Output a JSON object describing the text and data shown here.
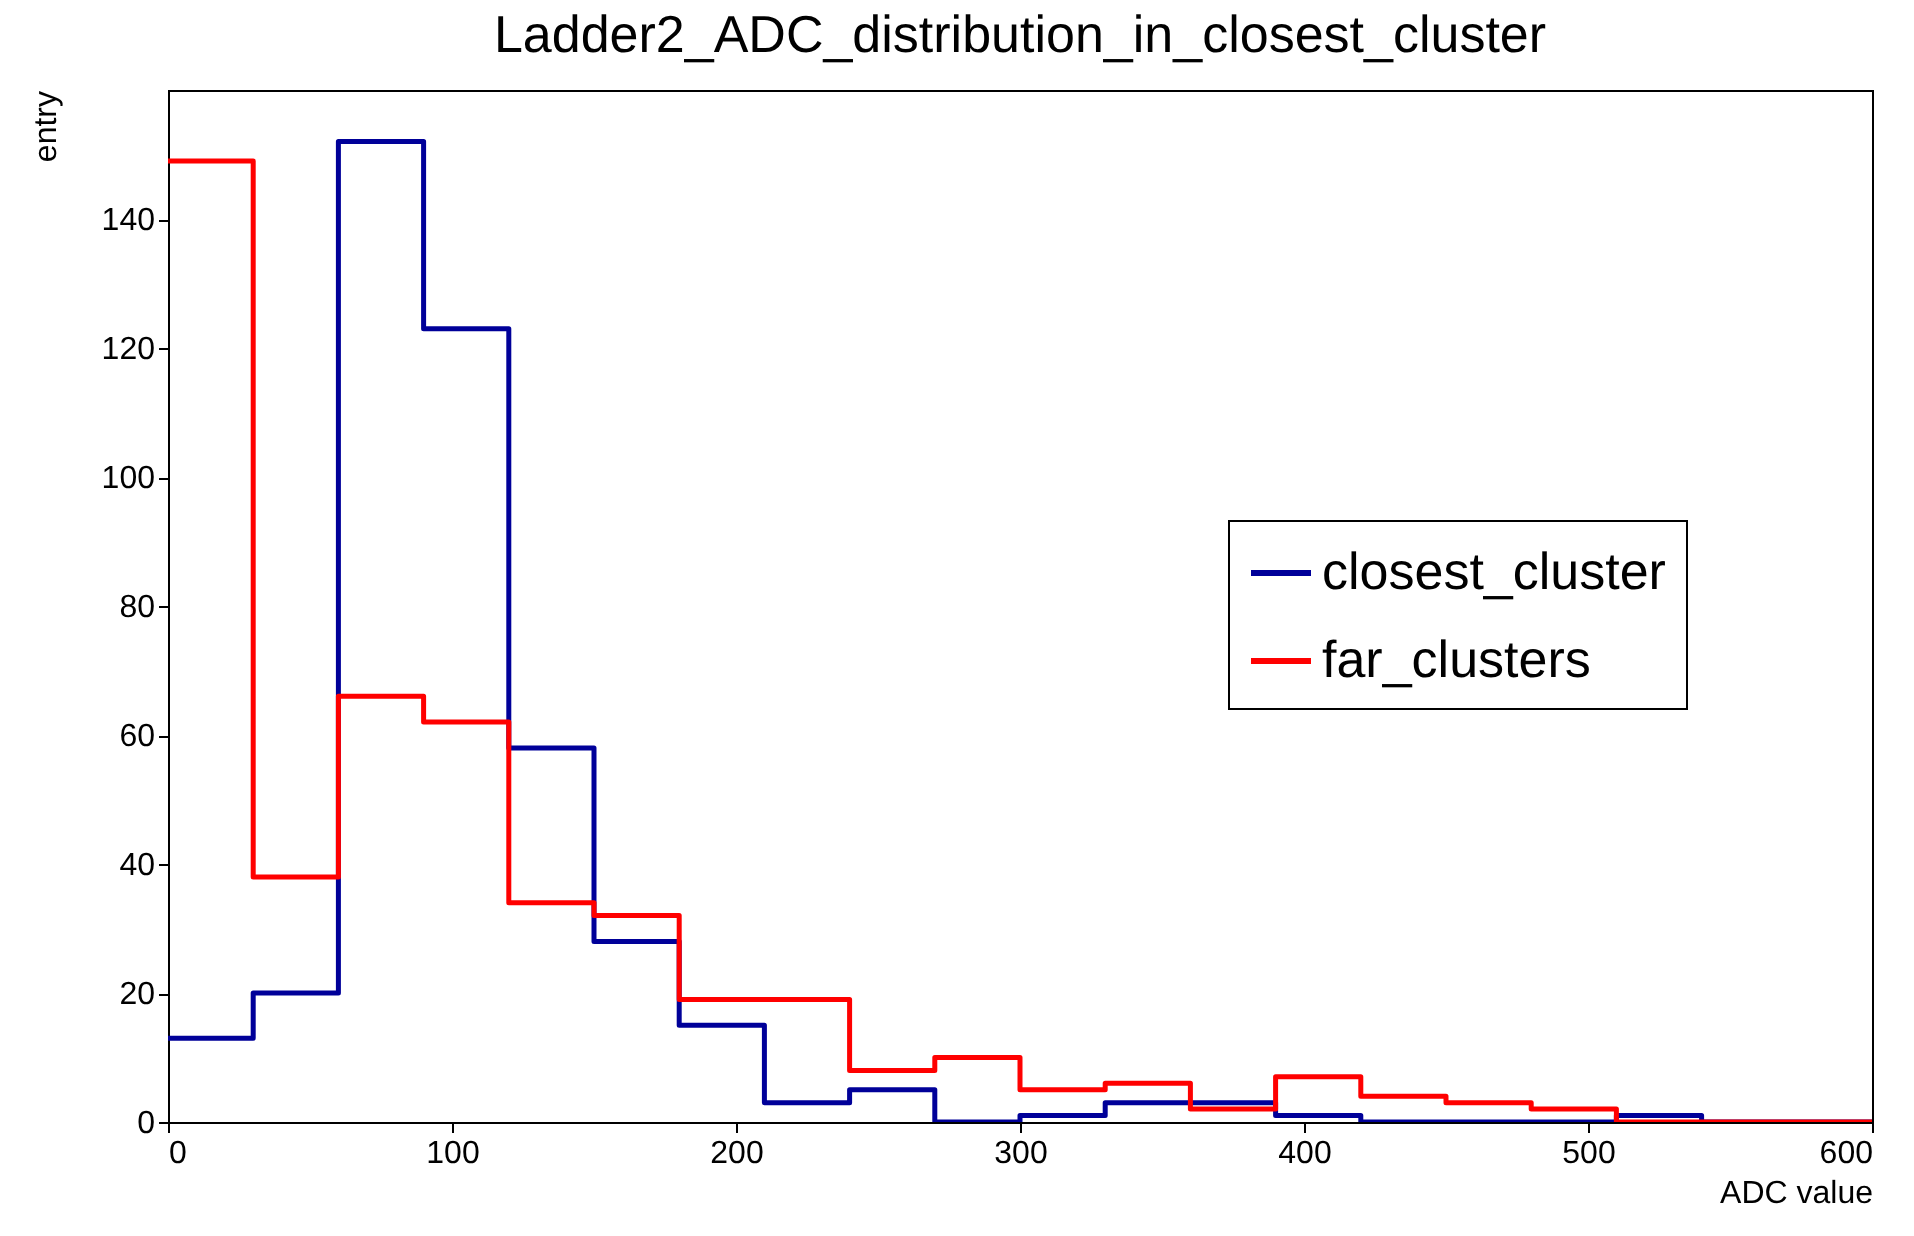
{
  "chart_data": {
    "type": "histogram",
    "title": "Ladder2_ADC_distribution_in_closest_cluster",
    "xlabel": "ADC value",
    "ylabel": "entry",
    "bins": [
      0,
      30,
      60,
      90,
      120,
      150,
      180,
      210,
      240,
      270,
      300,
      330,
      360,
      390,
      420,
      450,
      480,
      510,
      540,
      570,
      600
    ],
    "series": [
      {
        "name": "closest_cluster",
        "color": "#000099",
        "values": [
          13,
          20,
          152,
          123,
          58,
          28,
          15,
          3,
          5,
          0,
          1,
          3,
          3,
          1,
          0,
          0,
          0,
          1,
          0,
          0
        ]
      },
      {
        "name": "far_clusters",
        "color": "#ff0000",
        "values": [
          149,
          38,
          66,
          62,
          34,
          32,
          19,
          19,
          8,
          10,
          5,
          6,
          2,
          7,
          4,
          3,
          2,
          0,
          0,
          0
        ]
      }
    ],
    "xlim": [
      0,
      600
    ],
    "xticks": [
      0,
      100,
      200,
      300,
      400,
      500,
      600
    ],
    "ylim": [
      0,
      160
    ],
    "yticks": [
      0,
      20,
      40,
      60,
      80,
      100,
      120,
      140
    ],
    "legend": "right"
  }
}
